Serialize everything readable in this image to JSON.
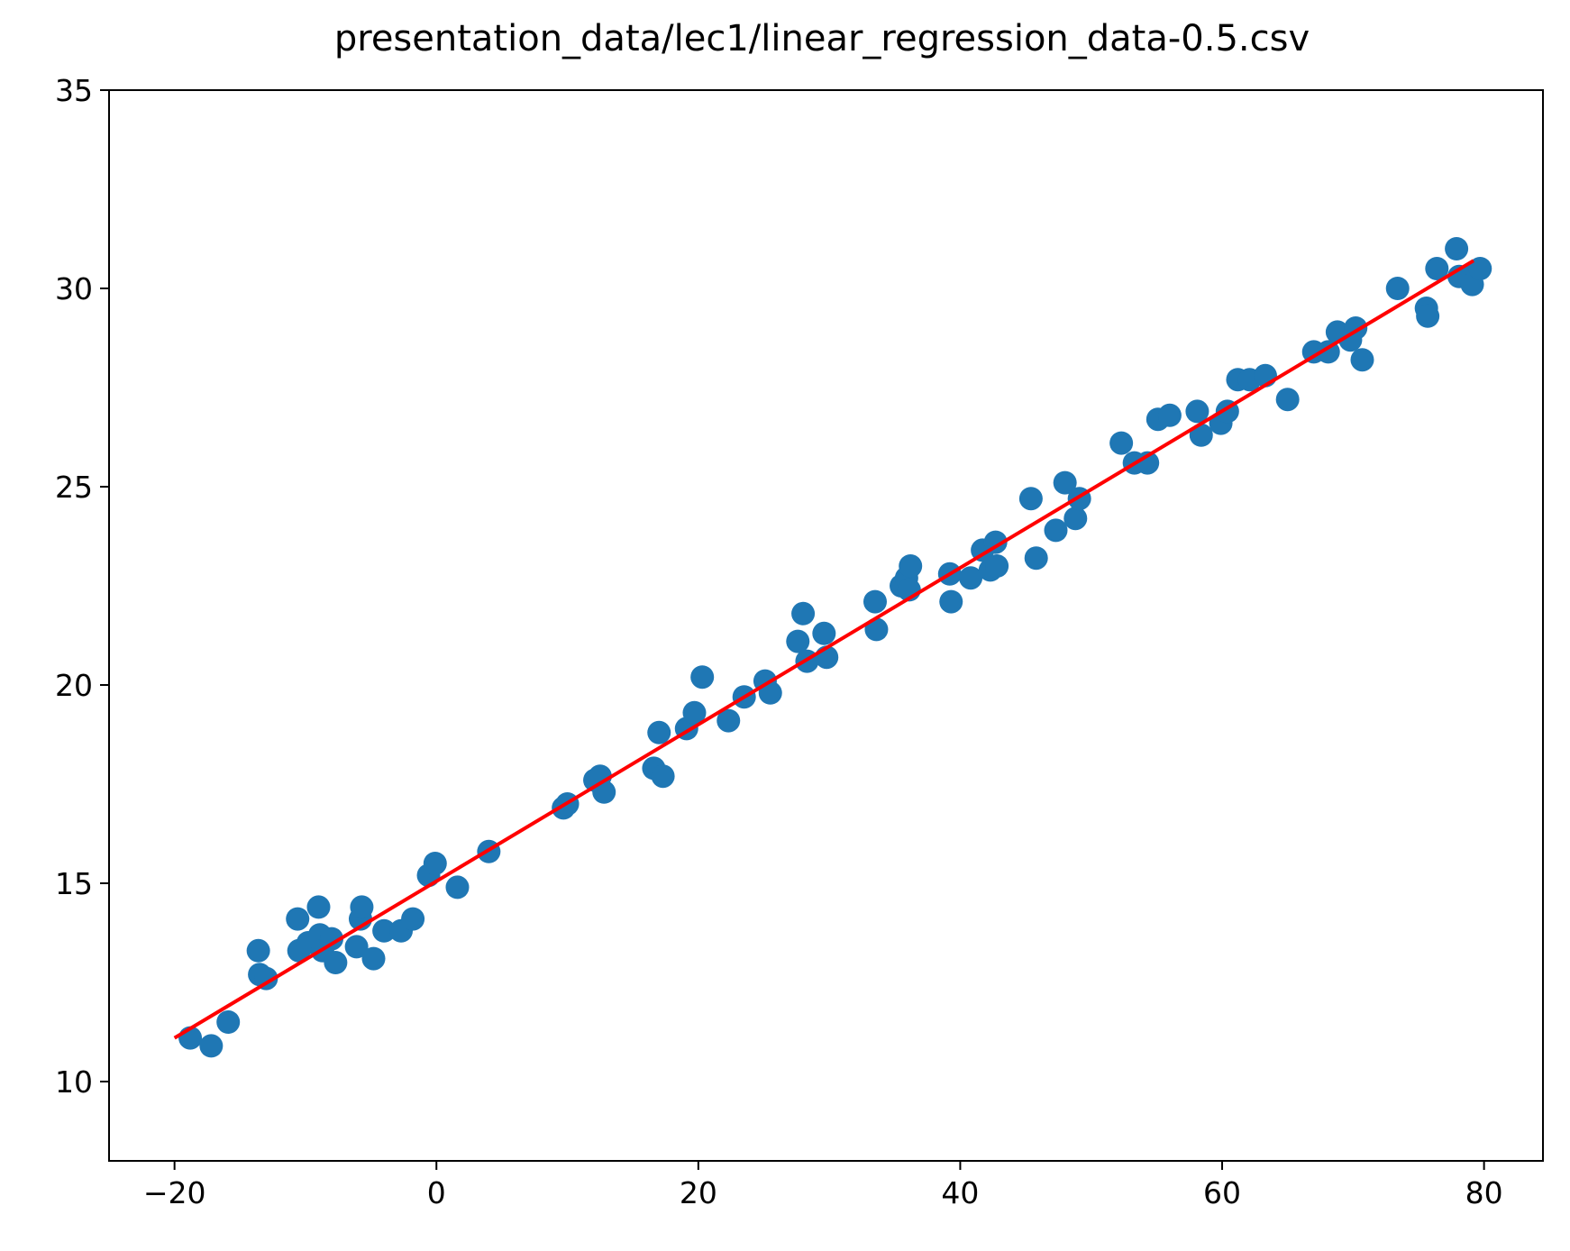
{
  "chart_data": {
    "type": "scatter",
    "title": "presentation_data/lec1/linear_regression_data-0.5.csv",
    "xlabel": "",
    "ylabel": "",
    "xlim": [
      -25,
      84.5
    ],
    "ylim": [
      8,
      35
    ],
    "x_ticks": [
      "−20",
      "0",
      "20",
      "40",
      "60",
      "80"
    ],
    "x_tick_values": [
      -20,
      0,
      20,
      40,
      60,
      80
    ],
    "y_ticks": [
      "10",
      "15",
      "20",
      "25",
      "30",
      "35"
    ],
    "y_tick_values": [
      10,
      15,
      20,
      25,
      30,
      35
    ],
    "grid": false,
    "colors": {
      "points": "#1f77b4",
      "fit_line": "#ff0000"
    },
    "series": [
      {
        "kind": "scatter",
        "points": [
          [
            -18.8,
            11.1
          ],
          [
            -17.2,
            10.9
          ],
          [
            -15.9,
            11.5
          ],
          [
            -13.6,
            13.3
          ],
          [
            -13.5,
            12.7
          ],
          [
            -13.0,
            12.6
          ],
          [
            -10.6,
            14.1
          ],
          [
            -10.5,
            13.3
          ],
          [
            -9.8,
            13.5
          ],
          [
            -9.0,
            14.4
          ],
          [
            -8.9,
            13.7
          ],
          [
            -8.7,
            13.3
          ],
          [
            -8.0,
            13.6
          ],
          [
            -7.7,
            13.0
          ],
          [
            -6.1,
            13.4
          ],
          [
            -5.8,
            14.1
          ],
          [
            -5.7,
            14.4
          ],
          [
            -4.8,
            13.1
          ],
          [
            -4.0,
            13.8
          ],
          [
            -2.7,
            13.8
          ],
          [
            -1.8,
            14.1
          ],
          [
            -0.6,
            15.2
          ],
          [
            -0.1,
            15.5
          ],
          [
            1.6,
            14.9
          ],
          [
            4.0,
            15.8
          ],
          [
            9.7,
            16.9
          ],
          [
            10.0,
            17.0
          ],
          [
            12.1,
            17.6
          ],
          [
            12.5,
            17.7
          ],
          [
            12.8,
            17.3
          ],
          [
            16.6,
            17.9
          ],
          [
            17.0,
            18.8
          ],
          [
            17.3,
            17.7
          ],
          [
            19.1,
            18.9
          ],
          [
            19.7,
            19.3
          ],
          [
            20.3,
            20.2
          ],
          [
            22.3,
            19.1
          ],
          [
            23.5,
            19.7
          ],
          [
            25.1,
            20.1
          ],
          [
            25.5,
            19.8
          ],
          [
            27.6,
            21.1
          ],
          [
            28.0,
            21.8
          ],
          [
            28.3,
            20.6
          ],
          [
            29.6,
            21.3
          ],
          [
            29.8,
            20.7
          ],
          [
            33.5,
            22.1
          ],
          [
            33.6,
            21.4
          ],
          [
            35.5,
            22.5
          ],
          [
            35.9,
            22.7
          ],
          [
            36.1,
            22.4
          ],
          [
            36.2,
            23.0
          ],
          [
            39.2,
            22.8
          ],
          [
            39.3,
            22.1
          ],
          [
            40.8,
            22.7
          ],
          [
            41.7,
            23.4
          ],
          [
            42.3,
            22.9
          ],
          [
            42.7,
            23.6
          ],
          [
            42.8,
            23.0
          ],
          [
            45.4,
            24.7
          ],
          [
            45.8,
            23.2
          ],
          [
            47.3,
            23.9
          ],
          [
            48.0,
            25.1
          ],
          [
            48.8,
            24.2
          ],
          [
            49.1,
            24.7
          ],
          [
            52.3,
            26.1
          ],
          [
            53.3,
            25.6
          ],
          [
            54.3,
            25.6
          ],
          [
            55.1,
            26.7
          ],
          [
            56.0,
            26.8
          ],
          [
            58.1,
            26.9
          ],
          [
            58.4,
            26.3
          ],
          [
            59.9,
            26.6
          ],
          [
            60.4,
            26.9
          ],
          [
            61.2,
            27.7
          ],
          [
            62.1,
            27.7
          ],
          [
            63.3,
            27.8
          ],
          [
            65.0,
            27.2
          ],
          [
            67.0,
            28.4
          ],
          [
            68.1,
            28.4
          ],
          [
            68.8,
            28.9
          ],
          [
            69.8,
            28.7
          ],
          [
            70.2,
            29.0
          ],
          [
            70.7,
            28.2
          ],
          [
            73.4,
            30.0
          ],
          [
            75.6,
            29.5
          ],
          [
            75.7,
            29.3
          ],
          [
            76.4,
            30.5
          ],
          [
            77.9,
            31.0
          ],
          [
            78.1,
            30.3
          ],
          [
            78.9,
            30.3
          ],
          [
            79.1,
            30.1
          ],
          [
            79.7,
            30.5
          ]
        ]
      },
      {
        "kind": "line",
        "x": [
          -20,
          79.2
        ],
        "y": [
          11.1,
          30.7
        ]
      }
    ]
  }
}
